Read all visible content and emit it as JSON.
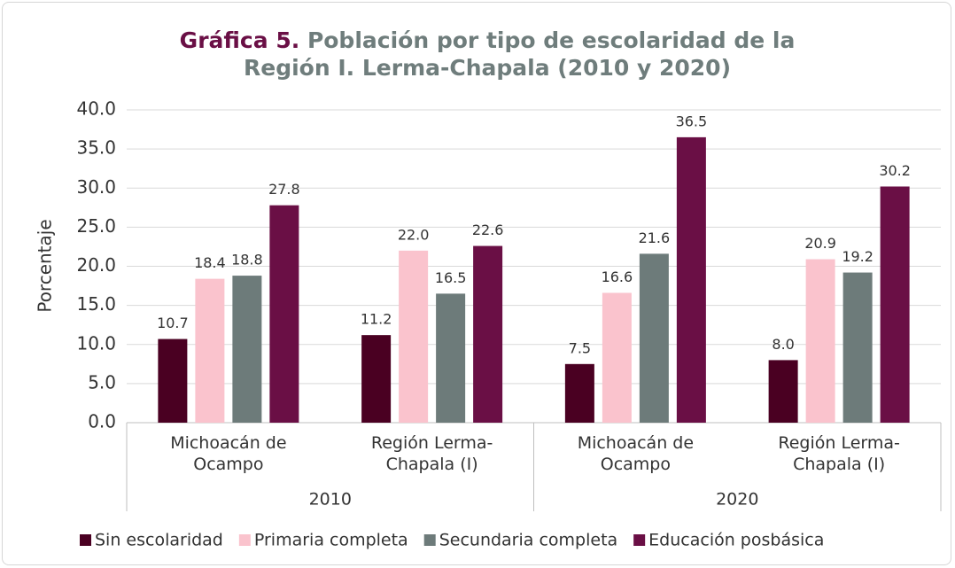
{
  "chart_data": {
    "type": "bar",
    "title_label": "Gráfica 5.",
    "title": "Población por tipo de escolaridad de la Región I. Lerma-Chapala (2010 y 2020)",
    "y_label": "Porcentaje",
    "groups": [
      "2010",
      "2020"
    ],
    "categories": [
      "Michoacán de Ocampo",
      "Región Lerma-Chapala (I)",
      "Michoacán de Ocampo",
      "Región Lerma-Chapala (I)"
    ],
    "series": [
      {
        "name": "Sin escolaridad",
        "color": "#4a0022",
        "values": [
          10.7,
          11.2,
          7.5,
          8.0
        ],
        "value_labels": [
          "10.7",
          "11.2",
          "7.5",
          "8.0"
        ]
      },
      {
        "name": "Primaria completa",
        "color": "#fac3cd",
        "values": [
          18.4,
          22.0,
          16.6,
          20.9
        ],
        "value_labels": [
          "18.4",
          "22.0",
          "16.6",
          "20.9"
        ]
      },
      {
        "name": "Secundaria completa",
        "color": "#6d7b7a",
        "values": [
          18.8,
          16.5,
          21.6,
          19.2
        ],
        "value_labels": [
          "18.8",
          "16.5",
          "21.6",
          "19.2"
        ]
      },
      {
        "name": "Educación posbásica",
        "color": "#6a0f45",
        "values": [
          27.8,
          22.6,
          36.5,
          30.2
        ],
        "value_labels": [
          "27.8",
          "22.6",
          "36.5",
          "30.2"
        ]
      }
    ],
    "ylim": [
      0,
      40
    ],
    "yticks": [
      {
        "value": 0,
        "label": "0.0"
      },
      {
        "value": 5,
        "label": "5.0"
      },
      {
        "value": 10,
        "label": "10.0"
      },
      {
        "value": 15,
        "label": "15.0"
      },
      {
        "value": 20,
        "label": "20.0"
      },
      {
        "value": 25,
        "label": "25.0"
      },
      {
        "value": 30,
        "label": "30.0"
      },
      {
        "value": 35,
        "label": "35.0"
      },
      {
        "value": 40,
        "label": "40.0"
      }
    ],
    "grid": true
  }
}
